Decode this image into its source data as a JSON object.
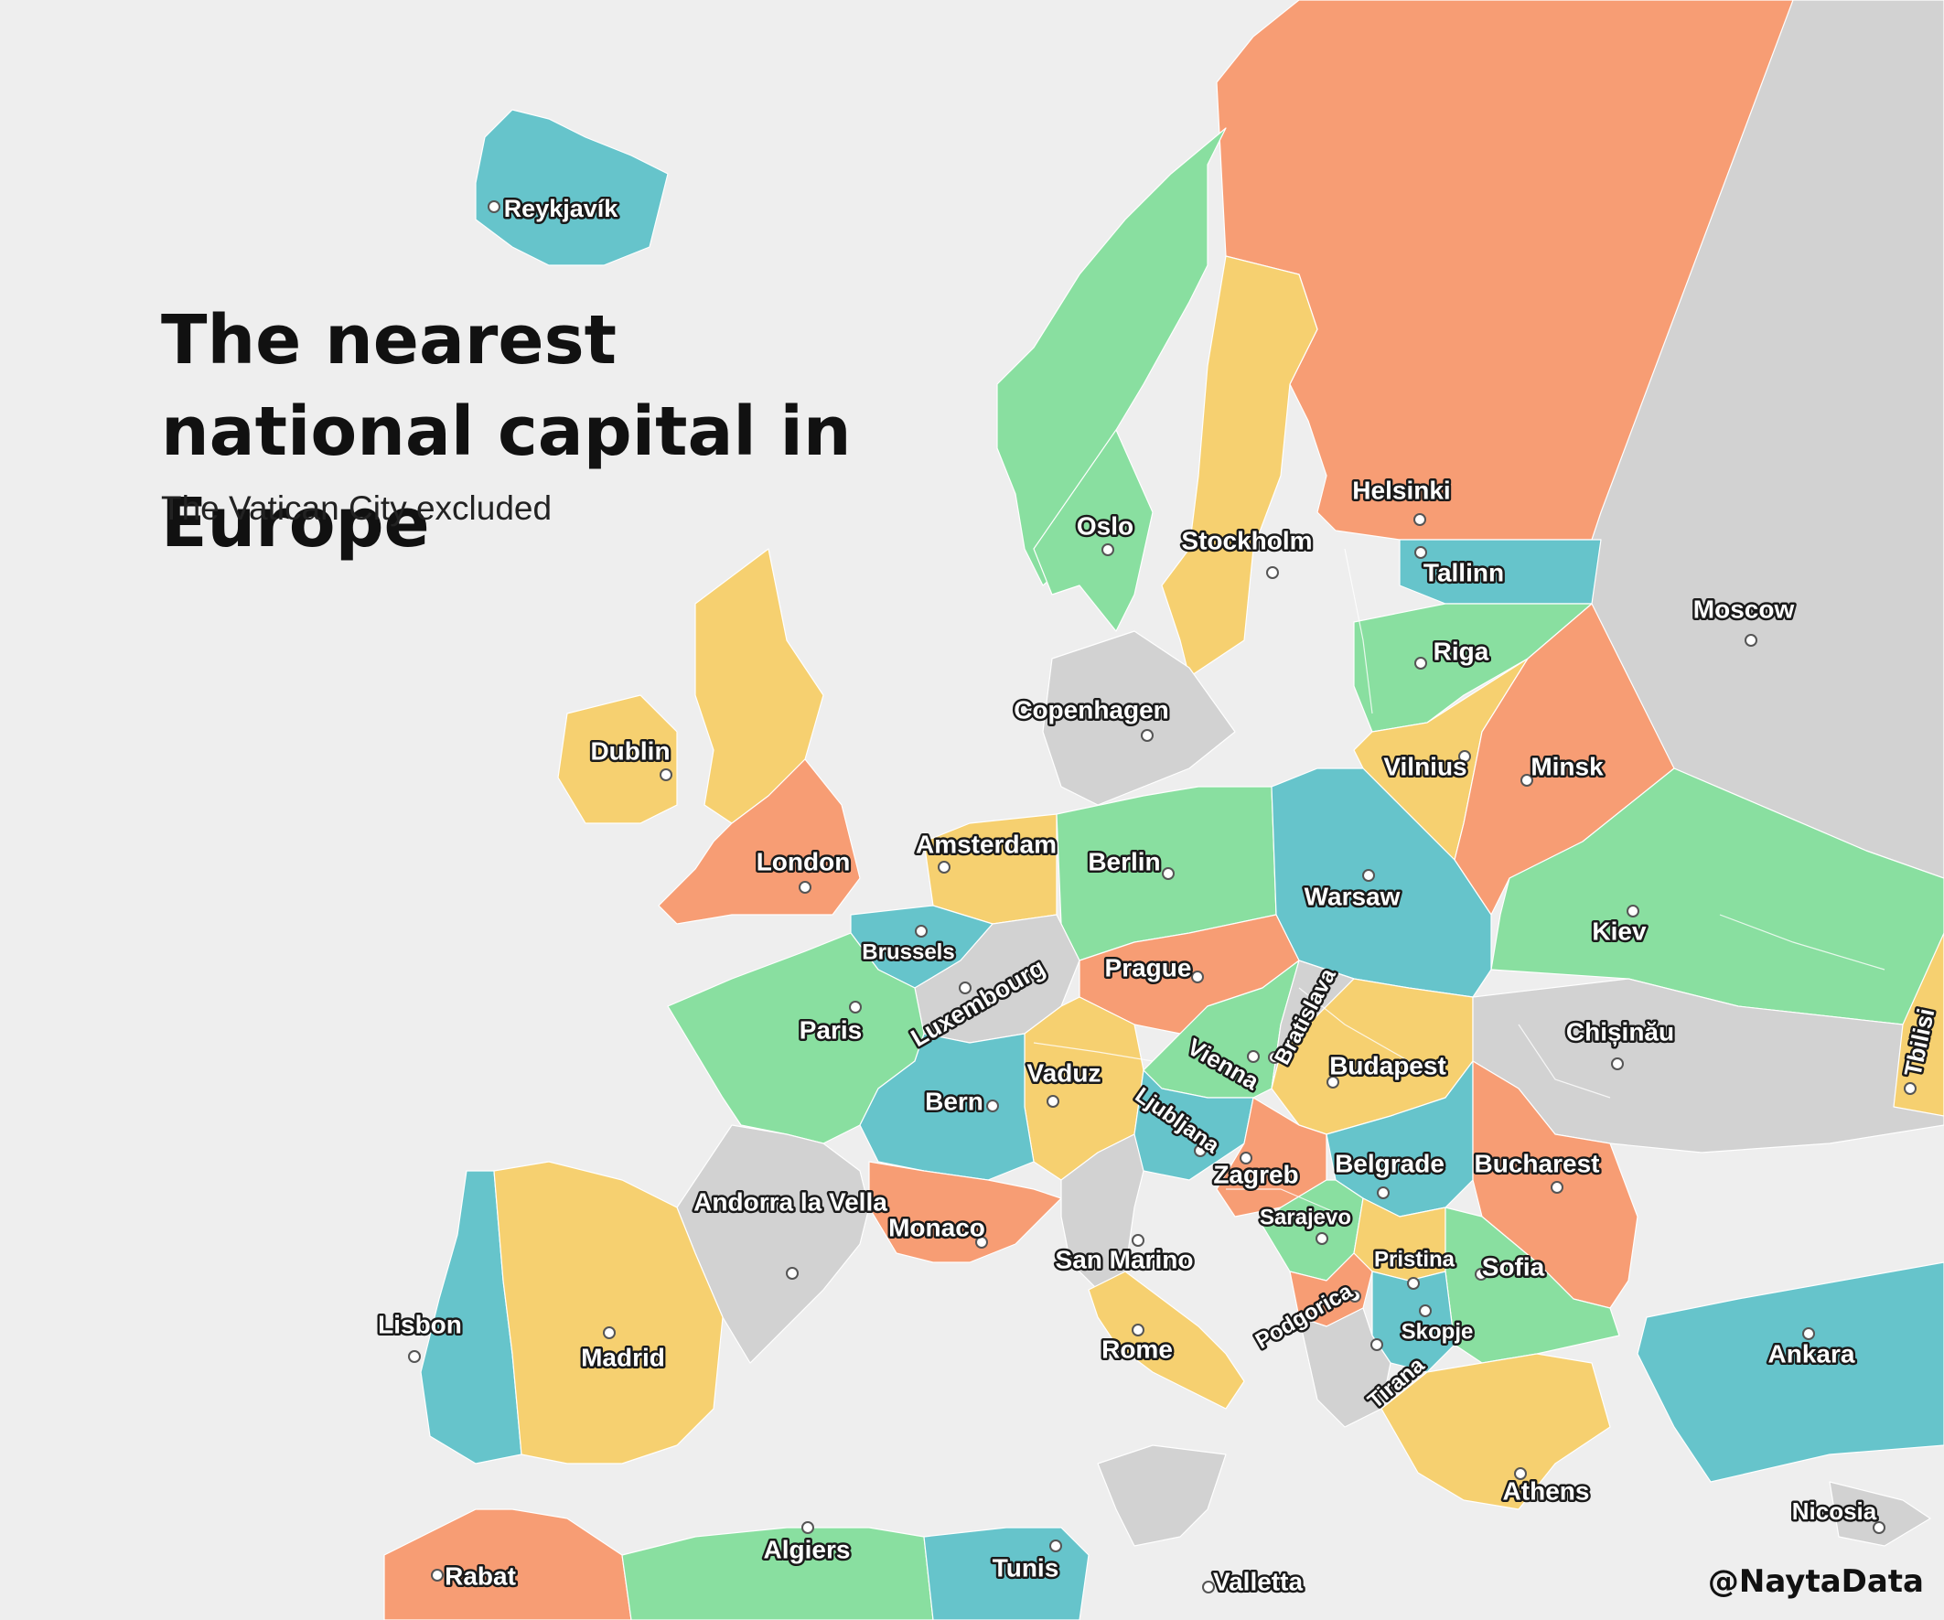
{
  "title": "The nearest national capital in Europe",
  "subtitle": "The Vatican City excluded",
  "credit": "@NaytaData",
  "colors": {
    "background": "#eeeeee",
    "land_gray": "#d2d2d2",
    "orange": "#f79d74",
    "green": "#89dfa0",
    "yellow": "#f6d070",
    "teal": "#66c4cb"
  },
  "capitals": [
    {
      "id": "reykjavik",
      "name": "Reykjavík",
      "color": "teal"
    },
    {
      "id": "oslo",
      "name": "Oslo",
      "color": "green"
    },
    {
      "id": "stockholm",
      "name": "Stockholm",
      "color": "yellow"
    },
    {
      "id": "helsinki",
      "name": "Helsinki",
      "color": "orange"
    },
    {
      "id": "tallinn",
      "name": "Tallinn",
      "color": "teal"
    },
    {
      "id": "moscow",
      "name": "Moscow",
      "color": "land_gray"
    },
    {
      "id": "riga",
      "name": "Riga",
      "color": "green"
    },
    {
      "id": "copenhagen",
      "name": "Copenhagen",
      "color": "land_gray"
    },
    {
      "id": "dublin",
      "name": "Dublin",
      "color": "yellow"
    },
    {
      "id": "vilnius",
      "name": "Vilnius",
      "color": "yellow"
    },
    {
      "id": "minsk",
      "name": "Minsk",
      "color": "orange"
    },
    {
      "id": "london",
      "name": "London",
      "color": "orange"
    },
    {
      "id": "amsterdam",
      "name": "Amsterdam",
      "color": "yellow"
    },
    {
      "id": "berlin",
      "name": "Berlin",
      "color": "green"
    },
    {
      "id": "warsaw",
      "name": "Warsaw",
      "color": "teal"
    },
    {
      "id": "kiev",
      "name": "Kiev",
      "color": "green"
    },
    {
      "id": "brussels",
      "name": "Brussels",
      "color": "teal"
    },
    {
      "id": "luxembourg",
      "name": "Luxembourg",
      "color": "land_gray"
    },
    {
      "id": "prague",
      "name": "Prague",
      "color": "orange"
    },
    {
      "id": "bratislava",
      "name": "Bratislava",
      "color": "land_gray"
    },
    {
      "id": "chisinau",
      "name": "Chișinău",
      "color": "land_gray"
    },
    {
      "id": "tbilisi",
      "name": "Tbilisi",
      "color": "yellow"
    },
    {
      "id": "paris",
      "name": "Paris",
      "color": "green"
    },
    {
      "id": "vienna",
      "name": "Vienna",
      "color": "green"
    },
    {
      "id": "budapest",
      "name": "Budapest",
      "color": "yellow"
    },
    {
      "id": "vaduz",
      "name": "Vaduz",
      "color": "yellow"
    },
    {
      "id": "bern",
      "name": "Bern",
      "color": "teal"
    },
    {
      "id": "ljubljana",
      "name": "Ljubljana",
      "color": "teal"
    },
    {
      "id": "zagreb",
      "name": "Zagreb",
      "color": "orange"
    },
    {
      "id": "belgrade",
      "name": "Belgrade",
      "color": "teal"
    },
    {
      "id": "bucharest",
      "name": "Bucharest",
      "color": "orange"
    },
    {
      "id": "andorra",
      "name": "Andorra la Vella",
      "color": "land_gray"
    },
    {
      "id": "monaco",
      "name": "Monaco",
      "color": "orange"
    },
    {
      "id": "sarajevo",
      "name": "Sarajevo",
      "color": "green"
    },
    {
      "id": "san_marino",
      "name": "San Marino",
      "color": "land_gray"
    },
    {
      "id": "pristina",
      "name": "Pristina",
      "color": "yellow"
    },
    {
      "id": "sofia",
      "name": "Sofia",
      "color": "green"
    },
    {
      "id": "lisbon",
      "name": "Lisbon",
      "color": "teal"
    },
    {
      "id": "madrid",
      "name": "Madrid",
      "color": "yellow"
    },
    {
      "id": "podgorica",
      "name": "Podgorica",
      "color": "orange"
    },
    {
      "id": "rome",
      "name": "Rome",
      "color": "yellow"
    },
    {
      "id": "skopje",
      "name": "Skopje",
      "color": "teal"
    },
    {
      "id": "ankara",
      "name": "Ankara",
      "color": "teal"
    },
    {
      "id": "tirana",
      "name": "Tirana",
      "color": "land_gray"
    },
    {
      "id": "athens",
      "name": "Athens",
      "color": "yellow"
    },
    {
      "id": "nicosia",
      "name": "Nicosia",
      "color": "land_gray"
    },
    {
      "id": "algiers",
      "name": "Algiers",
      "color": "green"
    },
    {
      "id": "tunis",
      "name": "Tunis",
      "color": "teal"
    },
    {
      "id": "rabat",
      "name": "Rabat",
      "color": "orange"
    },
    {
      "id": "valletta",
      "name": "Valletta",
      "color": "land_gray"
    }
  ]
}
